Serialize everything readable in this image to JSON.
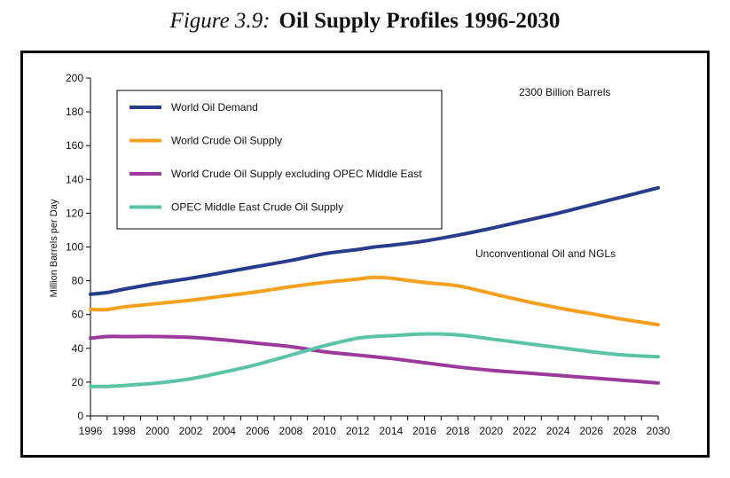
{
  "figure": {
    "number": "Figure 3.9:",
    "title": "Oil Supply Profiles 1996-2030"
  },
  "chart_data": {
    "type": "line",
    "title": "Oil Supply Profiles 1996-2030",
    "xlabel": "",
    "ylabel": "Million Barrels per Day",
    "xlim": [
      1996,
      2030
    ],
    "ylim": [
      0,
      200
    ],
    "x_ticks": [
      1996,
      1998,
      2000,
      2002,
      2004,
      2006,
      2008,
      2010,
      2012,
      2014,
      2016,
      2018,
      2020,
      2022,
      2024,
      2026,
      2028,
      2030
    ],
    "y_ticks": [
      0,
      20,
      40,
      60,
      80,
      100,
      120,
      140,
      160,
      180,
      200
    ],
    "legend_position": "top-left",
    "grid": false,
    "x": [
      1996,
      1997,
      1998,
      2000,
      2002,
      2004,
      2006,
      2008,
      2010,
      2012,
      2013,
      2014,
      2016,
      2018,
      2020,
      2022,
      2024,
      2026,
      2028,
      2030
    ],
    "series": [
      {
        "name": "World Oil Demand",
        "color": "#283C8C",
        "values": [
          72,
          73,
          75,
          78.5,
          81.5,
          85,
          88.5,
          92,
          96,
          98.5,
          100,
          101,
          103.5,
          107,
          111,
          115.5,
          120,
          125,
          130,
          135
        ]
      },
      {
        "name": "World Crude Oil Supply",
        "color": "#F5A01E",
        "values": [
          63,
          63,
          64.5,
          66.5,
          68.5,
          71,
          73.5,
          76.5,
          79,
          81,
          82,
          81.5,
          79,
          77,
          72.5,
          68,
          64,
          60.5,
          57,
          54
        ]
      },
      {
        "name": "World Crude Oil Supply excluding OPEC Middle East",
        "color": "#9B3A9B",
        "values": [
          46,
          47,
          47,
          47,
          46.5,
          45,
          43,
          41,
          38,
          36,
          35,
          34,
          31.5,
          29,
          27,
          25.5,
          24,
          22.5,
          21,
          19.5
        ]
      },
      {
        "name": "OPEC Middle East Crude Oil Supply",
        "color": "#5CC4A6",
        "values": [
          17.5,
          17.5,
          18,
          19.5,
          22,
          26,
          30.5,
          36,
          41.5,
          46,
          47,
          47.5,
          48.5,
          48,
          45.5,
          43,
          40.5,
          38,
          36,
          35
        ]
      }
    ],
    "annotations": [
      {
        "text": "2300 Billion Barrels"
      },
      {
        "text": "Unconventional Oil and NGLs"
      }
    ]
  }
}
